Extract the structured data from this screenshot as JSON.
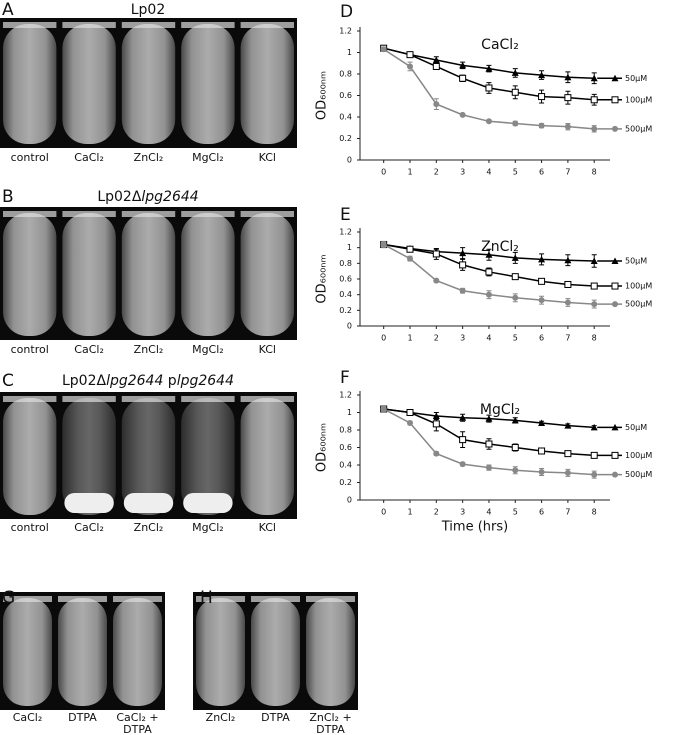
{
  "photo_panels": [
    {
      "letter": "A",
      "title_parts": [
        "Lp02"
      ],
      "labels": [
        "control",
        "CaCl₂",
        "ZnCl₂",
        "MgCl₂",
        "KCl"
      ]
    },
    {
      "letter": "B",
      "title_parts": [
        "Lp02Δ",
        "lpg2644"
      ],
      "labels": [
        "control",
        "CaCl₂",
        "ZnCl₂",
        "MgCl₂",
        "KCl"
      ]
    },
    {
      "letter": "C",
      "title_parts": [
        "Lp02Δ",
        "lpg2644",
        " p",
        "lpg2644"
      ],
      "labels": [
        "control",
        "CaCl₂",
        "ZnCl₂",
        "MgCl₂",
        "KCl"
      ]
    },
    {
      "letter": "G",
      "labels": [
        [
          "CaCl₂"
        ],
        [
          "DTPA"
        ],
        [
          "CaCl₂ +",
          "DTPA"
        ]
      ]
    },
    {
      "letter": "H",
      "labels": [
        [
          "ZnCl₂"
        ],
        [
          "DTPA"
        ],
        [
          "ZnCl₂ +",
          "DTPA"
        ]
      ]
    }
  ],
  "chart_data": [
    {
      "type": "line",
      "panel": "D",
      "title": "CaCl₂",
      "y_label": "OD₆₀₀ₙₘ",
      "x": [
        0,
        1,
        2,
        3,
        4,
        5,
        6,
        7,
        8
      ],
      "xlim": [
        -0.9,
        8.6
      ],
      "xticks": [
        0,
        1,
        2,
        3,
        4,
        5,
        6,
        7,
        8
      ],
      "ylim": [
        0,
        1.2
      ],
      "yticks": [
        0,
        0.2,
        0.4,
        0.6,
        0.8,
        1,
        1.2
      ],
      "series": [
        {
          "name": "50µM",
          "color": "#000000",
          "marker": "triangle",
          "values": [
            1.04,
            0.98,
            0.93,
            0.88,
            0.85,
            0.81,
            0.79,
            0.77,
            0.76
          ],
          "errors": [
            0.02,
            0.01,
            0.03,
            0.03,
            0.03,
            0.04,
            0.04,
            0.05,
            0.05
          ]
        },
        {
          "name": "100µM",
          "color": "#000000",
          "marker": "open-square",
          "values": [
            1.04,
            0.98,
            0.87,
            0.76,
            0.67,
            0.63,
            0.59,
            0.58,
            0.56
          ],
          "errors": [
            0.02,
            0.01,
            0.02,
            0.03,
            0.05,
            0.06,
            0.06,
            0.06,
            0.05
          ]
        },
        {
          "name": "500µM",
          "color": "#888888",
          "marker": "circle",
          "values": [
            1.03,
            0.87,
            0.52,
            0.42,
            0.36,
            0.34,
            0.32,
            0.31,
            0.29
          ],
          "errors": [
            0.02,
            0.04,
            0.05,
            0.01,
            0.01,
            0.02,
            0.02,
            0.03,
            0.03
          ]
        }
      ]
    },
    {
      "type": "line",
      "panel": "E",
      "title": "ZnCl₂",
      "y_label": "OD₆₀₀ₙₘ",
      "x": [
        0,
        1,
        2,
        3,
        4,
        5,
        6,
        7,
        8
      ],
      "xlim": [
        -0.9,
        8.6
      ],
      "xticks": [
        0,
        1,
        2,
        3,
        4,
        5,
        6,
        7,
        8
      ],
      "ylim": [
        0,
        1.2
      ],
      "yticks": [
        0,
        0.2,
        0.4,
        0.6,
        0.8,
        1,
        1.2
      ],
      "series": [
        {
          "name": "50µM",
          "color": "#000000",
          "marker": "triangle",
          "values": [
            1.04,
            0.99,
            0.95,
            0.93,
            0.91,
            0.87,
            0.85,
            0.84,
            0.83
          ],
          "errors": [
            0.02,
            0.02,
            0.03,
            0.07,
            0.07,
            0.07,
            0.07,
            0.07,
            0.08
          ]
        },
        {
          "name": "100µM",
          "color": "#000000",
          "marker": "open-square",
          "values": [
            1.04,
            0.98,
            0.92,
            0.78,
            0.69,
            0.63,
            0.57,
            0.53,
            0.51
          ],
          "errors": [
            0.02,
            0.02,
            0.07,
            0.07,
            0.05,
            0.03,
            0.03,
            0.02,
            0.01
          ]
        },
        {
          "name": "500µM",
          "color": "#888888",
          "marker": "circle",
          "values": [
            1.04,
            0.86,
            0.58,
            0.45,
            0.4,
            0.36,
            0.33,
            0.3,
            0.28
          ],
          "errors": [
            0.04,
            0.03,
            0.02,
            0.03,
            0.05,
            0.05,
            0.05,
            0.05,
            0.05
          ]
        }
      ]
    },
    {
      "type": "line",
      "panel": "F",
      "title": "MgCl₂",
      "y_label": "OD₆₀₀ₙₘ",
      "x_label": "Time (hrs)",
      "x": [
        0,
        1,
        2,
        3,
        4,
        5,
        6,
        7,
        8
      ],
      "xlim": [
        -0.9,
        8.6
      ],
      "xticks": [
        0,
        1,
        2,
        3,
        4,
        5,
        6,
        7,
        8
      ],
      "ylim": [
        0,
        1.2
      ],
      "yticks": [
        0,
        0.2,
        0.4,
        0.6,
        0.8,
        1,
        1.2
      ],
      "series": [
        {
          "name": "50µM",
          "color": "#000000",
          "marker": "triangle",
          "values": [
            1.04,
            1.0,
            0.96,
            0.94,
            0.93,
            0.91,
            0.88,
            0.85,
            0.83
          ],
          "errors": [
            0.02,
            0.02,
            0.04,
            0.04,
            0.04,
            0.03,
            0.02,
            0.02,
            0.02
          ]
        },
        {
          "name": "100µM",
          "color": "#000000",
          "marker": "open-square",
          "values": [
            1.04,
            1.0,
            0.87,
            0.69,
            0.64,
            0.6,
            0.56,
            0.53,
            0.51
          ],
          "errors": [
            0.02,
            0.02,
            0.08,
            0.09,
            0.06,
            0.04,
            0.03,
            0.02,
            0.01
          ]
        },
        {
          "name": "500µM",
          "color": "#888888",
          "marker": "circle",
          "values": [
            1.04,
            0.88,
            0.53,
            0.41,
            0.37,
            0.34,
            0.32,
            0.31,
            0.29
          ],
          "errors": [
            0.03,
            0.02,
            0.02,
            0.02,
            0.03,
            0.04,
            0.04,
            0.04,
            0.04
          ]
        }
      ]
    }
  ]
}
